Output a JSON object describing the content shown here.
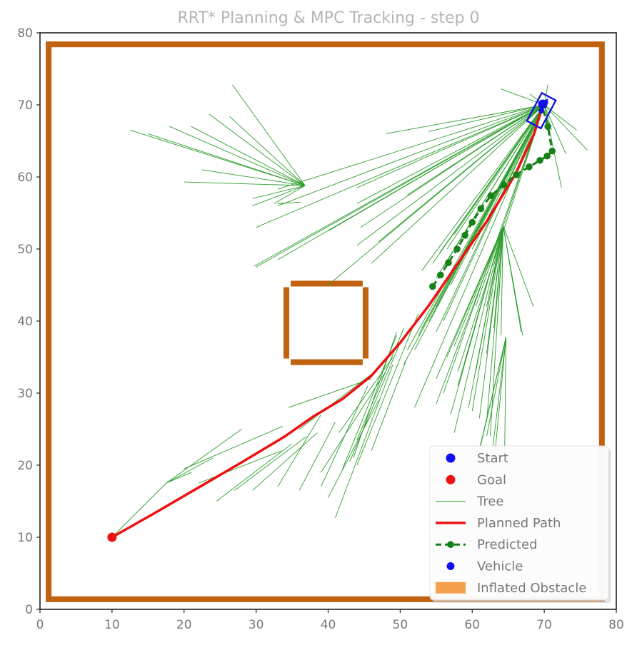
{
  "chart_data": {
    "type": "scatter",
    "title": "RRT* Planning & MPC Tracking - step 0",
    "xlabel": "",
    "ylabel": "",
    "xlim": [
      0,
      80
    ],
    "ylim": [
      0,
      80
    ],
    "x_ticks": [
      "0",
      "10",
      "20",
      "30",
      "40",
      "50",
      "60",
      "70",
      "80"
    ],
    "y_ticks": [
      "0",
      "10",
      "20",
      "30",
      "40",
      "50",
      "60",
      "70",
      "80"
    ],
    "grid": false,
    "legend_position": "lower-right",
    "colors": {
      "obstacle": "#c0620f",
      "inflated_obstacle": "#f5a04c",
      "tree": "#2e9e2e",
      "planned_path": "#ee1111",
      "predicted": "#188018",
      "start": "#1010ee",
      "goal": "#ee1111",
      "vehicle": "#1414d8"
    },
    "legend": [
      {
        "label": "Start",
        "marker": "dot",
        "color": "#1010ee"
      },
      {
        "label": "Goal",
        "marker": "dot",
        "color": "#ee1111"
      },
      {
        "label": "Tree",
        "marker": "thin-line",
        "color": "#2e9e2e"
      },
      {
        "label": "Planned Path",
        "marker": "line",
        "color": "#ee1111"
      },
      {
        "label": "Predicted",
        "marker": "dash-dot",
        "color": "#188018"
      },
      {
        "label": "Vehicle",
        "marker": "small-dot",
        "color": "#1010ee"
      },
      {
        "label": "Inflated Obstacle",
        "marker": "patch",
        "color": "#f5a04c"
      }
    ],
    "start": [
      69.8,
      70.1
    ],
    "goal": [
      10,
      10
    ],
    "vehicle": {
      "x": 69.6,
      "y": 69.2,
      "heading_deg": 62,
      "length": 4.4,
      "width": 2.2
    },
    "obstacles": [
      {
        "name": "boundary-bottom",
        "x0": 1,
        "y0": 1,
        "x1": 78,
        "y1": 1.8
      },
      {
        "name": "boundary-top",
        "x0": 1,
        "y0": 78,
        "x1": 78,
        "y1": 78.8
      },
      {
        "name": "boundary-left",
        "x0": 0.8,
        "y0": 1,
        "x1": 1.6,
        "y1": 78.8
      },
      {
        "name": "boundary-right",
        "x0": 77.6,
        "y0": 1,
        "x1": 78.4,
        "y1": 78.8
      },
      {
        "name": "box-top",
        "x0": 34.8,
        "y0": 44.8,
        "x1": 44.8,
        "y1": 45.6
      },
      {
        "name": "box-bottom",
        "x0": 34.8,
        "y0": 33.9,
        "x1": 44.8,
        "y1": 34.7
      },
      {
        "name": "box-left",
        "x0": 33.8,
        "y0": 34.8,
        "x1": 34.6,
        "y1": 44.7
      },
      {
        "name": "box-right",
        "x0": 44.8,
        "y0": 34.8,
        "x1": 45.6,
        "y1": 44.7
      }
    ],
    "planned_path": [
      [
        10,
        10
      ],
      [
        16,
        13.4
      ],
      [
        22,
        16.9
      ],
      [
        28,
        20.4
      ],
      [
        34,
        24
      ],
      [
        38,
        26.8
      ],
      [
        42,
        29.2
      ],
      [
        46,
        32.4
      ],
      [
        50,
        37
      ],
      [
        54,
        42.2
      ],
      [
        58,
        48
      ],
      [
        62,
        53.8
      ],
      [
        66,
        60.4
      ],
      [
        68.6,
        66
      ],
      [
        69.8,
        70
      ]
    ],
    "predicted": [
      [
        54.5,
        44.8
      ],
      [
        55.6,
        46.4
      ],
      [
        56.7,
        48.1
      ],
      [
        57.9,
        50
      ],
      [
        59,
        51.9
      ],
      [
        60,
        53.7
      ],
      [
        61.2,
        55.6
      ],
      [
        62.6,
        57.4
      ],
      [
        64.4,
        58.9
      ],
      [
        66.1,
        60.3
      ],
      [
        67.9,
        61.4
      ],
      [
        69.4,
        62.3
      ],
      [
        70.4,
        62.9
      ],
      [
        71.1,
        63.6
      ],
      [
        70.5,
        67
      ],
      [
        69.7,
        69.9
      ]
    ],
    "tree_edges": [
      [
        [
          70,
          70
        ],
        [
          64,
          72.2
        ]
      ],
      [
        [
          70,
          70
        ],
        [
          68,
          71.5
        ]
      ],
      [
        [
          70,
          70
        ],
        [
          70.5,
          72.8
        ]
      ],
      [
        [
          70,
          70
        ],
        [
          74.5,
          66.5
        ]
      ],
      [
        [
          70,
          70
        ],
        [
          76,
          63.7
        ]
      ],
      [
        [
          70,
          70
        ],
        [
          72.4,
          58.5
        ]
      ],
      [
        [
          70,
          70
        ],
        [
          73,
          63.2
        ]
      ],
      [
        [
          70,
          70
        ],
        [
          71,
          66.5
        ]
      ],
      [
        [
          70,
          70
        ],
        [
          48,
          66
        ]
      ],
      [
        [
          70,
          70
        ],
        [
          54,
          66.3
        ]
      ],
      [
        [
          70,
          70
        ],
        [
          44,
          56.3
        ]
      ],
      [
        [
          70,
          70
        ],
        [
          51,
          57.5
        ]
      ],
      [
        [
          70,
          70
        ],
        [
          47,
          51
        ]
      ],
      [
        [
          70,
          70
        ],
        [
          57.5,
          52
        ]
      ],
      [
        [
          70,
          70
        ],
        [
          56.5,
          50
        ]
      ],
      [
        [
          70,
          70
        ],
        [
          55.5,
          49.5
        ]
      ],
      [
        [
          70,
          70
        ],
        [
          54.5,
          48
        ]
      ],
      [
        [
          70,
          70
        ],
        [
          53,
          47
        ]
      ],
      [
        [
          70,
          70
        ],
        [
          60,
          50
        ]
      ],
      [
        [
          70,
          70
        ],
        [
          58,
          48
        ]
      ],
      [
        [
          70,
          70
        ],
        [
          56,
          47.5
        ]
      ],
      [
        [
          70,
          70
        ],
        [
          55,
          46
        ]
      ],
      [
        [
          70,
          70
        ],
        [
          57,
          45
        ]
      ],
      [
        [
          70,
          70
        ],
        [
          55,
          42
        ]
      ],
      [
        [
          70,
          70
        ],
        [
          54,
          40
        ]
      ],
      [
        [
          70,
          70
        ],
        [
          52.5,
          38
        ]
      ],
      [
        [
          70,
          70
        ],
        [
          51,
          36
        ]
      ],
      [
        [
          70,
          70
        ],
        [
          60.5,
          42
        ]
      ],
      [
        [
          70,
          70
        ],
        [
          56,
          40
        ]
      ],
      [
        [
          70,
          70
        ],
        [
          55,
          38.5
        ]
      ],
      [
        [
          70,
          70
        ],
        [
          53,
          39
        ]
      ],
      [
        [
          70,
          70
        ],
        [
          52,
          36
        ]
      ],
      [
        [
          70,
          70
        ],
        [
          50.5,
          34
        ]
      ],
      [
        [
          70,
          70
        ],
        [
          58,
          33
        ]
      ],
      [
        [
          70,
          70
        ],
        [
          56,
          30
        ]
      ],
      [
        [
          70,
          70
        ],
        [
          52,
          28
        ]
      ],
      [
        [
          70,
          70
        ],
        [
          44.5,
          53
        ]
      ],
      [
        [
          70,
          70
        ],
        [
          44,
          58.5
        ]
      ],
      [
        [
          70,
          70
        ],
        [
          40,
          45
        ]
      ],
      [
        [
          70,
          70
        ],
        [
          33,
          56
        ]
      ],
      [
        [
          70,
          70
        ],
        [
          30,
          53
        ]
      ],
      [
        [
          70,
          70
        ],
        [
          30,
          47.5
        ]
      ],
      [
        [
          70,
          70
        ],
        [
          29.7,
          47.6
        ]
      ],
      [
        [
          70,
          70
        ],
        [
          33,
          48.5
        ]
      ],
      [
        [
          70,
          70
        ],
        [
          40,
          52.5
        ]
      ],
      [
        [
          70,
          70
        ],
        [
          46,
          48
        ]
      ],
      [
        [
          70,
          70
        ],
        [
          44,
          50.5
        ]
      ],
      [
        [
          70,
          70
        ],
        [
          33,
          58.3
        ]
      ],
      [
        [
          36.8,
          58.8
        ],
        [
          26.7,
          72.8
        ]
      ],
      [
        [
          36.8,
          58.8
        ],
        [
          23.5,
          68.7
        ]
      ],
      [
        [
          36.8,
          58.8
        ],
        [
          21,
          67
        ]
      ],
      [
        [
          36.8,
          58.8
        ],
        [
          18,
          67
        ]
      ],
      [
        [
          36.8,
          58.8
        ],
        [
          15,
          66
        ]
      ],
      [
        [
          36.8,
          58.8
        ],
        [
          12.5,
          66.5
        ]
      ],
      [
        [
          36.8,
          58.8
        ],
        [
          20,
          59.3
        ]
      ],
      [
        [
          36.8,
          58.8
        ],
        [
          22.5,
          61
        ]
      ],
      [
        [
          36.8,
          58.8
        ],
        [
          29.5,
          57
        ]
      ],
      [
        [
          36.8,
          58.8
        ],
        [
          32.5,
          56.3
        ]
      ],
      [
        [
          36.8,
          58.8
        ],
        [
          26.3,
          68.4
        ]
      ],
      [
        [
          36.8,
          58.8
        ],
        [
          29.5,
          56
        ]
      ],
      [
        [
          33,
          56.3
        ],
        [
          36.2,
          56.5
        ]
      ],
      [
        [
          64.3,
          53.2
        ],
        [
          68.5,
          42
        ]
      ],
      [
        [
          64.3,
          53.2
        ],
        [
          66.8,
          38.5
        ]
      ],
      [
        [
          64.3,
          53.2
        ],
        [
          67,
          38
        ]
      ],
      [
        [
          64.3,
          53.2
        ],
        [
          63.5,
          40
        ]
      ],
      [
        [
          64.3,
          53.2
        ],
        [
          62,
          42
        ]
      ],
      [
        [
          64.3,
          53.2
        ],
        [
          57.5,
          36.5
        ]
      ],
      [
        [
          64.3,
          53.2
        ],
        [
          60.5,
          33
        ]
      ],
      [
        [
          64.3,
          53.2
        ],
        [
          62,
          35.5
        ]
      ],
      [
        [
          64.3,
          53.2
        ],
        [
          58,
          31
        ]
      ],
      [
        [
          64.3,
          53.2
        ],
        [
          55,
          32
        ]
      ],
      [
        [
          64.3,
          53.2
        ],
        [
          57,
          27
        ]
      ],
      [
        [
          64.3,
          53.2
        ],
        [
          56.5,
          35
        ]
      ],
      [
        [
          64.3,
          53.2
        ],
        [
          63,
          39
        ]
      ],
      [
        [
          64.3,
          53.2
        ],
        [
          62,
          26
        ]
      ],
      [
        [
          64.3,
          53.2
        ],
        [
          60,
          27.5
        ]
      ],
      [
        [
          64.3,
          53.2
        ],
        [
          59.5,
          28
        ]
      ],
      [
        [
          64.3,
          53.2
        ],
        [
          57.5,
          24.5
        ]
      ],
      [
        [
          64.3,
          53.2
        ],
        [
          64,
          38
        ]
      ],
      [
        [
          64.3,
          53.2
        ],
        [
          55,
          28.5
        ]
      ],
      [
        [
          64.3,
          53.2
        ],
        [
          62.5,
          24
        ]
      ],
      [
        [
          64.3,
          53.2
        ],
        [
          61,
          26.5
        ]
      ],
      [
        [
          64.7,
          37.8
        ],
        [
          63,
          20
        ]
      ],
      [
        [
          64.7,
          37.8
        ],
        [
          61,
          22
        ]
      ],
      [
        [
          64.7,
          37.8
        ],
        [
          60,
          18
        ]
      ],
      [
        [
          64.7,
          37.8
        ],
        [
          62,
          24
        ]
      ],
      [
        [
          64.7,
          37.8
        ],
        [
          64.5,
          21.5
        ]
      ],
      [
        [
          64.7,
          37.8
        ],
        [
          62.5,
          19.5
        ]
      ],
      [
        [
          10,
          10
        ],
        [
          17.5,
          17.5
        ]
      ],
      [
        [
          17.5,
          17.5
        ],
        [
          28,
          25
        ]
      ],
      [
        [
          17.5,
          17.5
        ],
        [
          24,
          21
        ]
      ],
      [
        [
          17.5,
          17.5
        ],
        [
          21,
          19
        ]
      ],
      [
        [
          20,
          19.5
        ],
        [
          33.7,
          25.4
        ]
      ],
      [
        [
          22,
          17.5
        ],
        [
          33.5,
          22
        ]
      ],
      [
        [
          24.5,
          15
        ],
        [
          35,
          23
        ]
      ],
      [
        [
          27,
          16.5
        ],
        [
          37,
          24
        ]
      ],
      [
        [
          29.5,
          16.5
        ],
        [
          38.5,
          24.5
        ]
      ],
      [
        [
          33,
          17
        ],
        [
          39,
          27
        ]
      ],
      [
        [
          36,
          16.5
        ],
        [
          41,
          26
        ]
      ],
      [
        [
          39,
          17
        ],
        [
          45.5,
          31
        ]
      ],
      [
        [
          39,
          19
        ],
        [
          48,
          33
        ]
      ],
      [
        [
          40,
          15.5
        ],
        [
          47,
          29
        ]
      ],
      [
        [
          41,
          12.7
        ],
        [
          49,
          34
        ]
      ],
      [
        [
          42,
          19.5
        ],
        [
          49.5,
          38
        ]
      ],
      [
        [
          44,
          20
        ],
        [
          52.5,
          41
        ]
      ],
      [
        [
          46,
          22
        ],
        [
          51,
          35
        ]
      ],
      [
        [
          34.5,
          28
        ],
        [
          46,
          32
        ]
      ],
      [
        [
          36,
          25
        ],
        [
          46.5,
          33
        ]
      ],
      [
        [
          41.5,
          24.5
        ],
        [
          49,
          35
        ]
      ],
      [
        [
          43,
          20.5
        ],
        [
          50,
          37
        ]
      ],
      [
        [
          44,
          23.5
        ],
        [
          50.5,
          39
        ]
      ],
      [
        [
          43.5,
          21
        ],
        [
          49.5,
          38.5
        ]
      ]
    ]
  }
}
